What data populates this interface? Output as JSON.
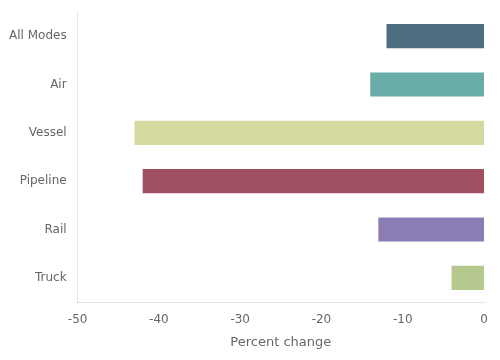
{
  "chart_data": {
    "type": "bar",
    "orientation": "horizontal",
    "categories": [
      "All Modes",
      "Air",
      "Vessel",
      "Pipeline",
      "Rail",
      "Truck"
    ],
    "values": [
      -12,
      -14,
      -43,
      -42,
      -13,
      -4
    ],
    "colors": [
      "#4d6e7e",
      "#6aada8",
      "#d4d9a0",
      "#a05060",
      "#8b7cb3",
      "#b5c98e"
    ],
    "xlabel": "Percent change",
    "xlim": [
      -50,
      0
    ],
    "xticks": [
      -50,
      -40,
      -30,
      -20,
      -10,
      0
    ],
    "grid": false
  }
}
